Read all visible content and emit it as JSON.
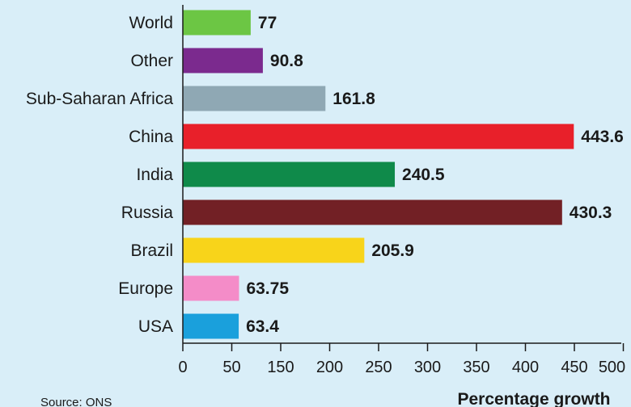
{
  "chart_data": {
    "type": "bar",
    "orientation": "horizontal",
    "categories": [
      "World",
      "Other",
      "Sub-Saharan Africa",
      "China",
      "India",
      "Russia",
      "Brazil",
      "Europe",
      "USA"
    ],
    "values": [
      77,
      90.8,
      161.8,
      443.6,
      240.5,
      430.3,
      205.9,
      63.75,
      63.4
    ],
    "value_labels": [
      "77",
      "90.8",
      "161.8",
      "443.6",
      "240.5",
      "430.3",
      "205.9",
      "63.75",
      "63.4"
    ],
    "colors": [
      "#6cc644",
      "#7b2a8e",
      "#8fa8b4",
      "#e8202a",
      "#0f8a4a",
      "#722025",
      "#f8d41a",
      "#f48cc8",
      "#1aa0dc"
    ],
    "xlabel": "Percentage growth",
    "ylabel": "",
    "xlim": [
      0,
      500
    ],
    "xticks": [
      0,
      50,
      150,
      200,
      250,
      300,
      350,
      400,
      450,
      500
    ],
    "grid": false,
    "source": "Source: ONS"
  }
}
